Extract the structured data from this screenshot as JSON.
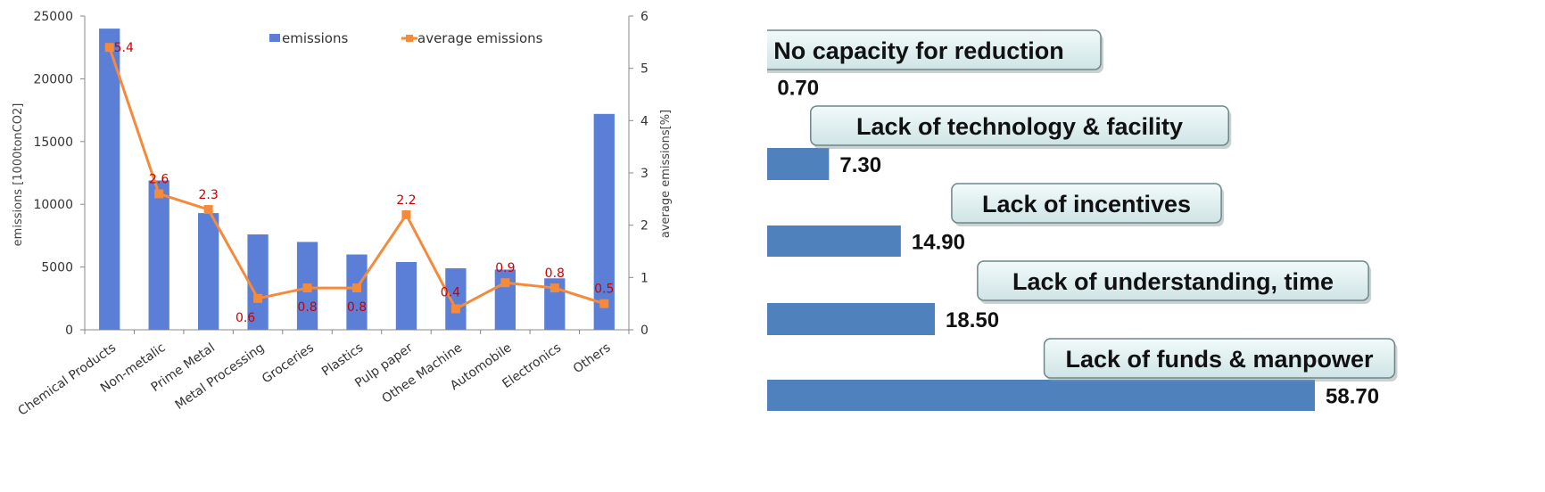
{
  "chart_data": [
    {
      "type": "bar",
      "categories": [
        "Chemical Products",
        "Non-metalic",
        "Prime Metal",
        "Metal Processing",
        "Groceries",
        "Plastics",
        "Pulp paper",
        "Othee Machine",
        "Automobile",
        "Electronics",
        "Others"
      ],
      "series": [
        {
          "name": "emissions",
          "kind": "bar",
          "axis": "left",
          "values": [
            24000,
            11900,
            9300,
            7600,
            7000,
            6000,
            5400,
            4900,
            4800,
            4100,
            17200
          ],
          "color": "#5B7FD6"
        },
        {
          "name": "average emissions",
          "kind": "line",
          "axis": "right",
          "values": [
            5.4,
            2.6,
            2.3,
            0.6,
            0.8,
            0.8,
            2.2,
            0.4,
            0.9,
            0.8,
            0.5
          ],
          "labels": [
            "5.4",
            "2.6",
            "2.3",
            "0.6",
            "0.8",
            "0.8",
            "2.2",
            "0.4",
            "0.9",
            "0.8",
            "0.5"
          ],
          "color": "#F58A3A"
        }
      ],
      "ylabel": "emissions [1000tonCO2]",
      "y2label": "average emissions[%]",
      "ylim": [
        0,
        25000
      ],
      "y2lim": [
        0,
        6
      ],
      "yticks": [
        "0",
        "5000",
        "10000",
        "15000",
        "20000",
        "25000"
      ],
      "y2ticks": [
        "0",
        "1",
        "2",
        "3",
        "4",
        "5",
        "6"
      ],
      "legend": "top",
      "label_color": "#CC0000",
      "grid": false
    },
    {
      "type": "bar",
      "orientation": "horizontal",
      "categories": [
        "No capacity for reduction",
        "Lack of technology & facility",
        "Lack of incentives",
        "Lack of understanding, time",
        "Lack of funds & manpower"
      ],
      "values": [
        0.7,
        7.3,
        14.9,
        18.5,
        58.7
      ],
      "value_labels": [
        "0.70",
        "7.30",
        "14.90",
        "18.50",
        "58.70"
      ],
      "xlim": [
        0,
        58.7
      ],
      "bar_color": "#4F81BD",
      "pill_fill": "#DDEDEE",
      "grid": false
    }
  ]
}
